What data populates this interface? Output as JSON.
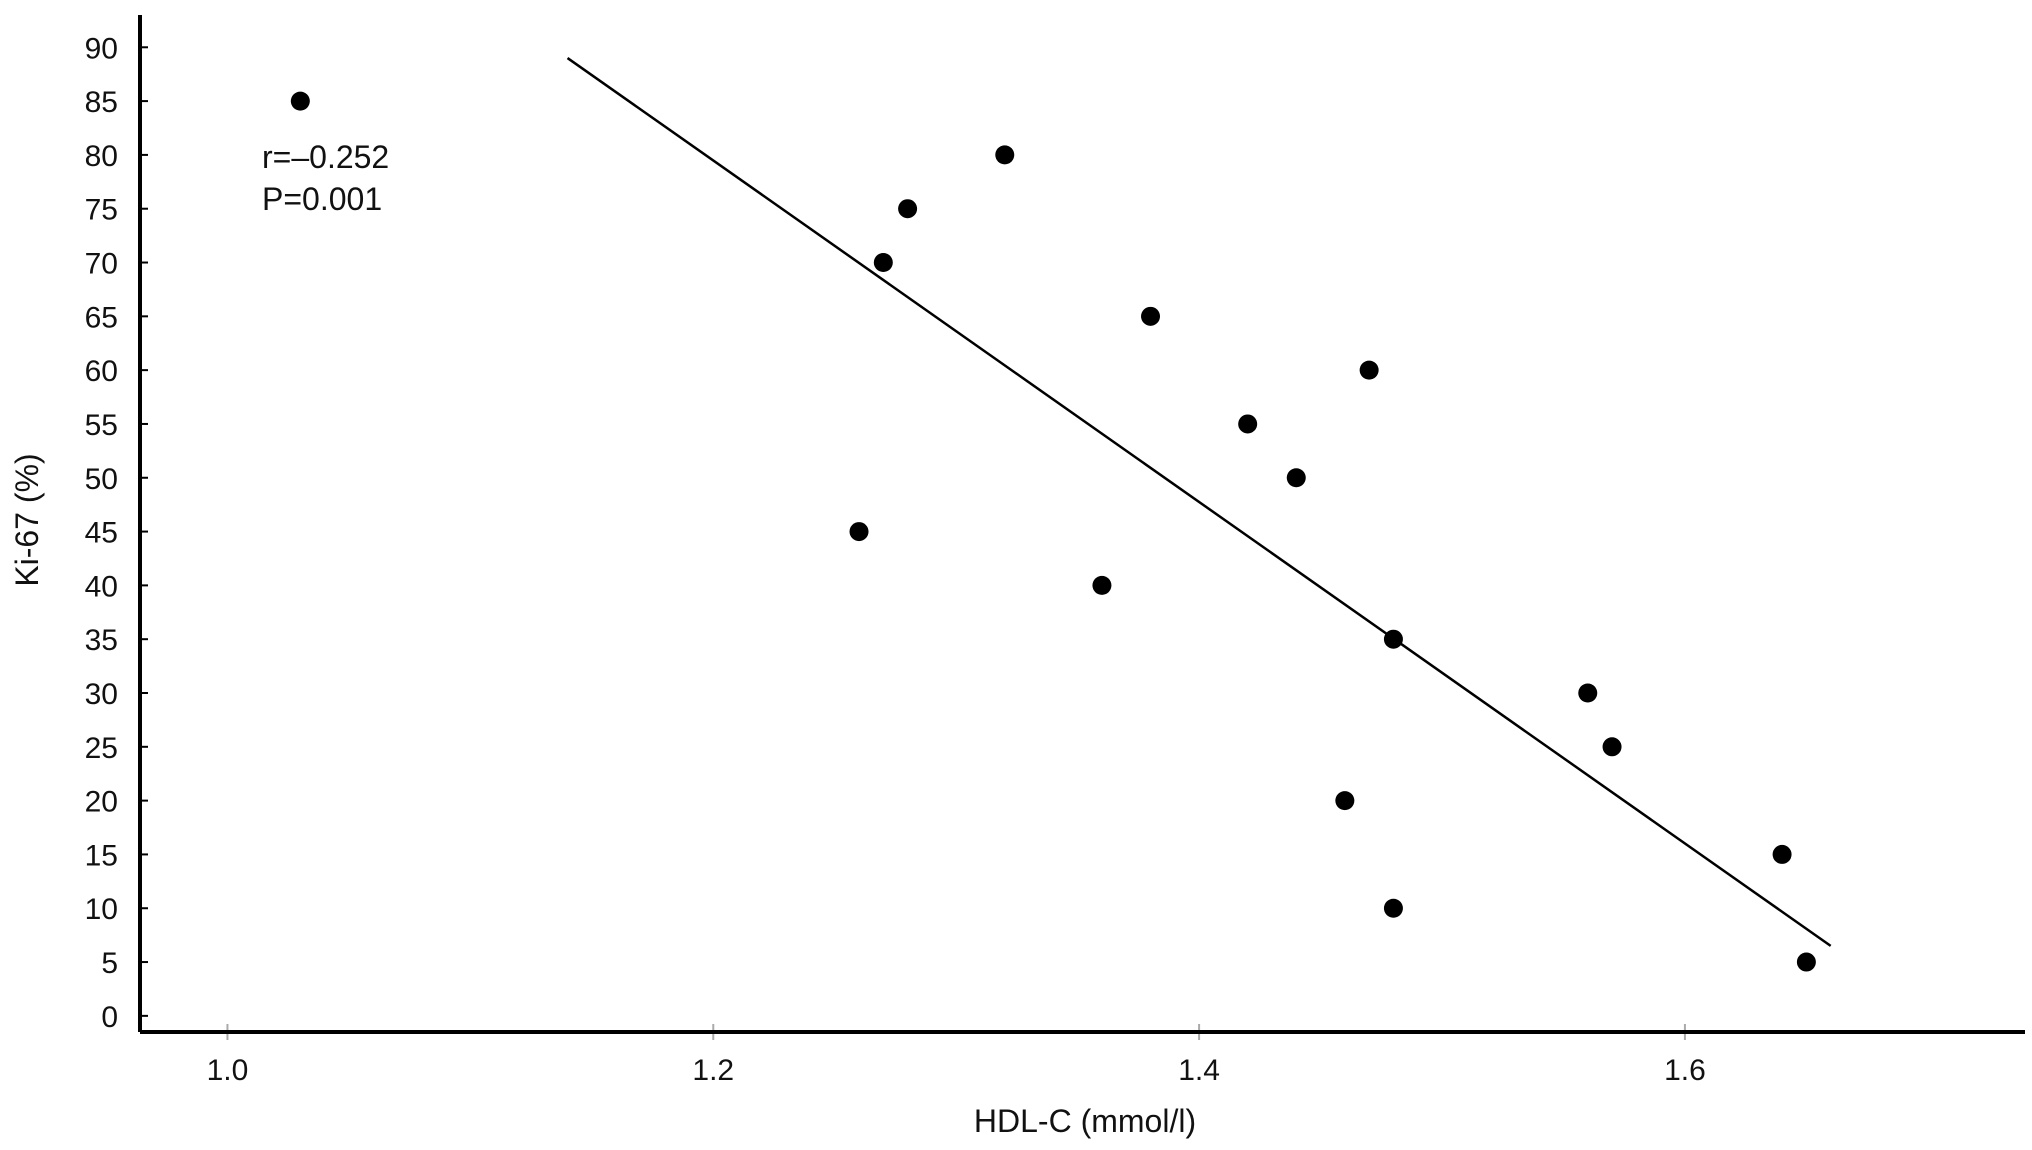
{
  "chart_data": {
    "type": "scatter",
    "xlabel": "HDL-C (mmol/l)",
    "ylabel": "Ki-67 (%)",
    "xlim": [
      0.964,
      1.74
    ],
    "ylim": [
      -1.5,
      93
    ],
    "x_ticks": [
      1.0,
      1.2,
      1.4,
      1.6
    ],
    "x_tick_labels": [
      "1.0",
      "1.2",
      "1.4",
      "1.6"
    ],
    "y_ticks": [
      0,
      5,
      10,
      15,
      20,
      25,
      30,
      35,
      40,
      45,
      50,
      55,
      60,
      65,
      70,
      75,
      80,
      85,
      90
    ],
    "y_tick_labels": [
      "0",
      "5",
      "10",
      "15",
      "20",
      "25",
      "30",
      "35",
      "40",
      "45",
      "50",
      "55",
      "60",
      "65",
      "70",
      "75",
      "80",
      "85",
      "90"
    ],
    "points": [
      {
        "x": 1.03,
        "y": 85
      },
      {
        "x": 1.26,
        "y": 45
      },
      {
        "x": 1.27,
        "y": 70
      },
      {
        "x": 1.28,
        "y": 75
      },
      {
        "x": 1.32,
        "y": 80
      },
      {
        "x": 1.36,
        "y": 40
      },
      {
        "x": 1.38,
        "y": 65
      },
      {
        "x": 1.42,
        "y": 55
      },
      {
        "x": 1.44,
        "y": 50
      },
      {
        "x": 1.46,
        "y": 20
      },
      {
        "x": 1.47,
        "y": 60
      },
      {
        "x": 1.48,
        "y": 35
      },
      {
        "x": 1.48,
        "y": 10
      },
      {
        "x": 1.56,
        "y": 30
      },
      {
        "x": 1.57,
        "y": 25
      },
      {
        "x": 1.64,
        "y": 15
      },
      {
        "x": 1.65,
        "y": 5
      }
    ],
    "regression_line": {
      "x": [
        1.14,
        1.66
      ],
      "y": [
        89,
        6.5
      ]
    },
    "annotations": [
      "r=–0.252",
      "P=0.001"
    ],
    "grid": false,
    "colors": {
      "points": "#000000",
      "line": "#000000",
      "axis": "#000000"
    }
  }
}
